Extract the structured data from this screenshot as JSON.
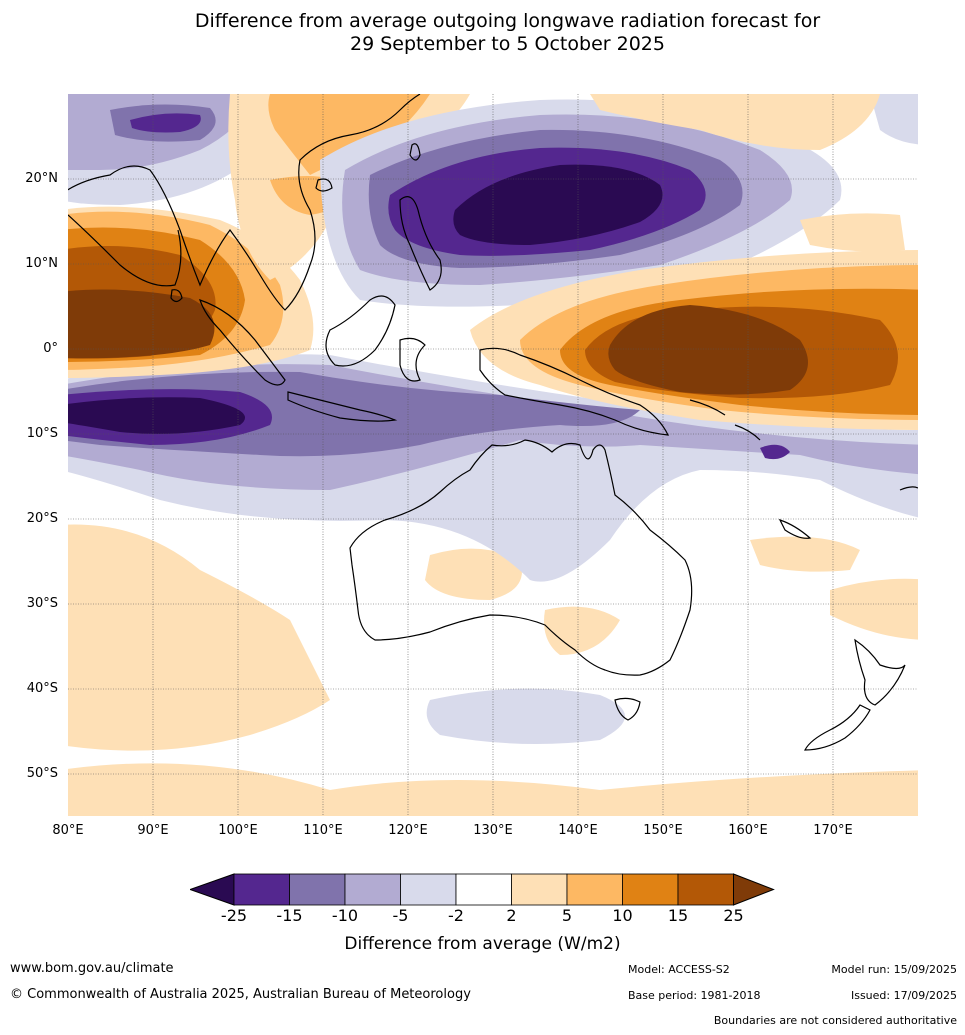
{
  "title": {
    "line1": "Difference from average outgoing longwave radiation forecast for",
    "line2": "29 September to 5 October 2025"
  },
  "map": {
    "lat_labels": [
      "20°N",
      "10°N",
      "0°",
      "10°S",
      "20°S",
      "30°S",
      "40°S",
      "50°S"
    ],
    "lon_labels": [
      "80°E",
      "90°E",
      "100°E",
      "110°E",
      "120°E",
      "130°E",
      "140°E",
      "150°E",
      "160°E",
      "170°E"
    ],
    "lat_range": [
      -55,
      30
    ],
    "lon_range": [
      80,
      180
    ]
  },
  "colorbar": {
    "ticks": [
      "-25",
      "-15",
      "-10",
      "-5",
      "-2",
      "2",
      "5",
      "10",
      "15",
      "25"
    ],
    "colors": [
      "#2a0a52",
      "#54278f",
      "#8073ac",
      "#b2abd2",
      "#d8daeb",
      "#ffffff",
      "#fee0b6",
      "#fdb863",
      "#e08214",
      "#b35806",
      "#7f3b08"
    ],
    "label": "Difference from average (W/m2)"
  },
  "footer": {
    "website": "www.bom.gov.au/climate",
    "copyright": "© Commonwealth of Australia 2025, Australian Bureau of Meteorology",
    "model": "Model: ACCESS-S2",
    "model_run": "Model run: 15/09/2025",
    "base_period": "Base period: 1981-2018",
    "issued": "Issued: 17/09/2025",
    "disclaimer": "Boundaries are not considered authoritative"
  }
}
